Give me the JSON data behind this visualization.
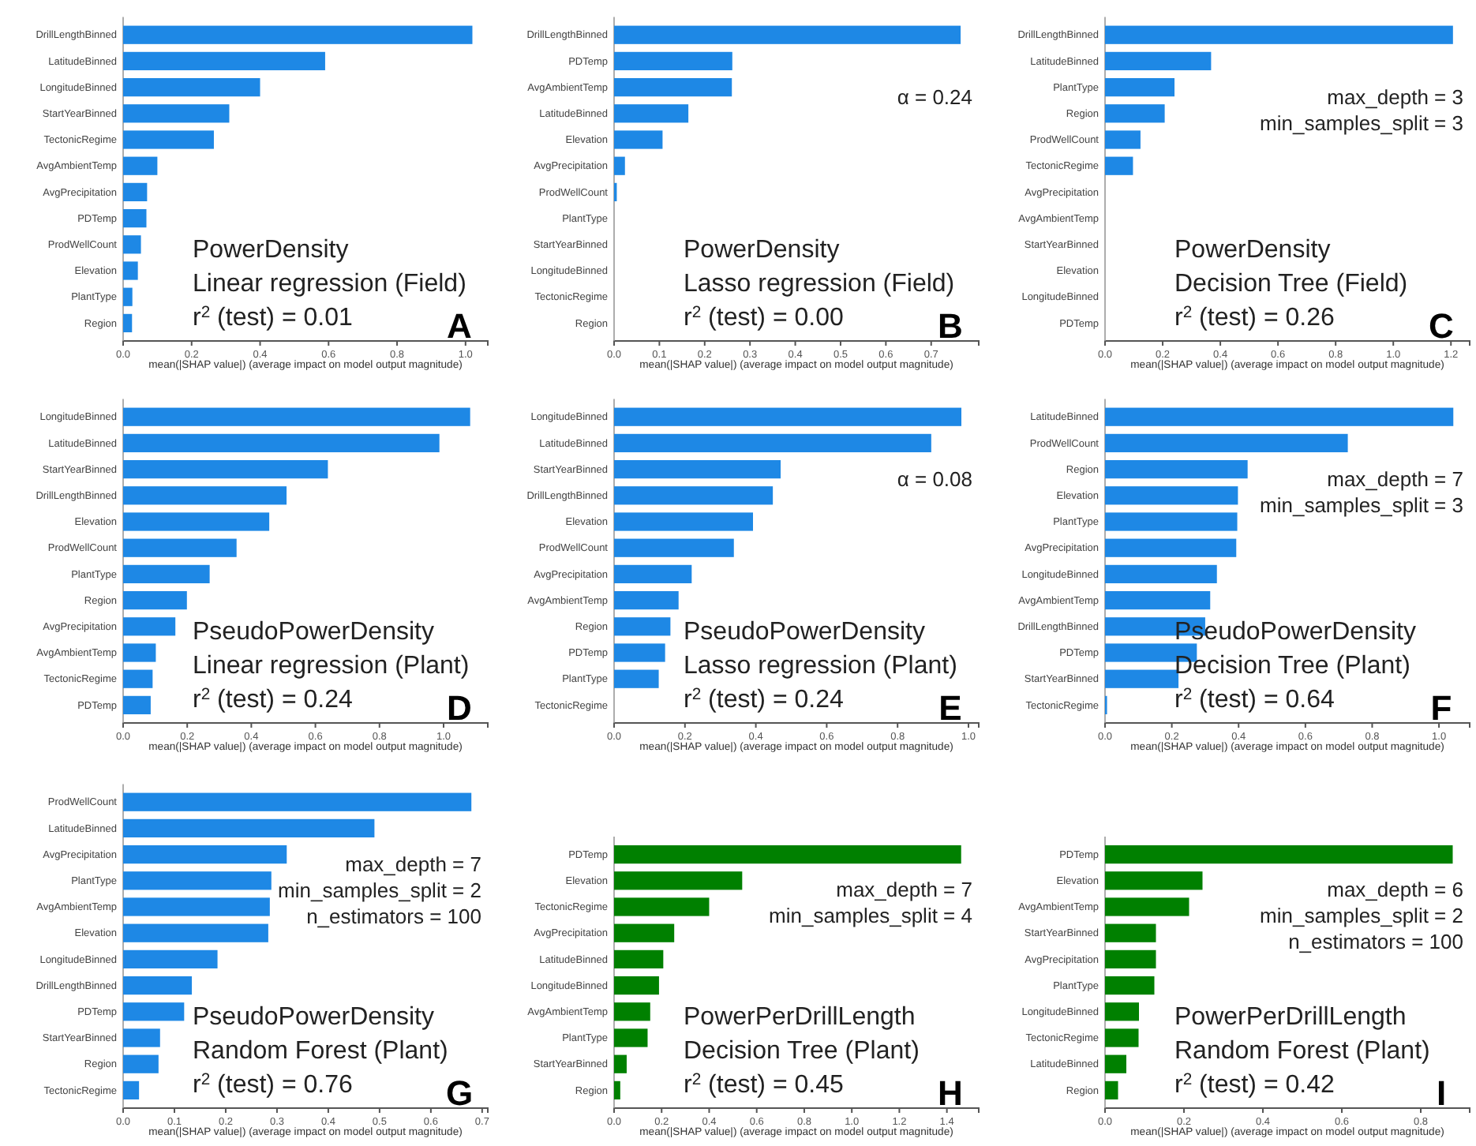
{
  "chart_data": [
    {
      "type": "bar",
      "orientation": "horizontal",
      "color": "#1e88e5",
      "categories": [
        "DrillLengthBinned",
        "LatitudeBinned",
        "LongitudeBinned",
        "StartYearBinned",
        "TectonicRegime",
        "AvgAmbientTemp",
        "AvgPrecipitation",
        "PDTemp",
        "ProdWellCount",
        "Elevation",
        "PlantType",
        "Region"
      ],
      "values": [
        1.02,
        0.59,
        0.4,
        0.31,
        0.265,
        0.1,
        0.07,
        0.068,
        0.052,
        0.043,
        0.027,
        0.026
      ],
      "xlim": [
        0,
        1.065
      ],
      "xticks": [
        {
          "value": 0,
          "label": "0.0"
        },
        {
          "value": 0.2,
          "label": "0.2"
        },
        {
          "value": 0.4,
          "label": "0.4"
        },
        {
          "value": 0.6,
          "label": "0.6"
        },
        {
          "value": 0.8,
          "label": "0.8"
        },
        {
          "value": 1,
          "label": "1.0"
        }
      ],
      "xlabel": "mean(|SHAP value|) (average impact on model output magnitude)",
      "annotations": [
        "PowerDensity",
        "Linear regression (Field)",
        "r$^{2}$ (test) = 0.01",
        "A"
      ]
    },
    {
      "type": "bar",
      "orientation": "horizontal",
      "color": "#1e88e5",
      "categories": [
        "DrillLengthBinned",
        "PDTemp",
        "AvgAmbientTemp",
        "LatitudeBinned",
        "Elevation",
        "AvgPrecipitation",
        "ProdWellCount",
        "PlantType",
        "StartYearBinned",
        "LongitudeBinned",
        "TectonicRegime",
        "Region"
      ],
      "values": [
        0.765,
        0.261,
        0.26,
        0.164,
        0.107,
        0.024,
        0.006,
        0,
        0,
        0,
        0,
        0
      ],
      "xlim": [
        0,
        0.805
      ],
      "xticks": [
        {
          "value": 0,
          "label": "0.0"
        },
        {
          "value": 0.1,
          "label": "0.1"
        },
        {
          "value": 0.2,
          "label": "0.2"
        },
        {
          "value": 0.3,
          "label": "0.3"
        },
        {
          "value": 0.4,
          "label": "0.4"
        },
        {
          "value": 0.5,
          "label": "0.5"
        },
        {
          "value": 0.6,
          "label": "0.6"
        },
        {
          "value": 0.7,
          "label": "0.7"
        }
      ],
      "xlabel": "mean(|SHAP value|) (average impact on model output magnitude)",
      "annotations": [
        "α = 0.24",
        "PowerDensity",
        "Lasso regression (Field)",
        "r$^{2}$ (test) = 0.00",
        "B"
      ]
    },
    {
      "type": "bar",
      "orientation": "horizontal",
      "color": "#1e88e5",
      "categories": [
        "DrillLengthBinned",
        "LatitudeBinned",
        "PlantType",
        "Region",
        "ProdWellCount",
        "TectonicRegime",
        "AvgPrecipitation",
        "AvgAmbientTemp",
        "StartYearBinned",
        "Elevation",
        "LongitudeBinned",
        "PDTemp"
      ],
      "values": [
        1.207,
        0.368,
        0.241,
        0.207,
        0.123,
        0.097,
        0,
        0,
        0,
        0,
        0,
        0
      ],
      "xlim": [
        0,
        1.265
      ],
      "xticks": [
        {
          "value": 0,
          "label": "0.0"
        },
        {
          "value": 0.2,
          "label": "0.2"
        },
        {
          "value": 0.4,
          "label": "0.4"
        },
        {
          "value": 0.6,
          "label": "0.6"
        },
        {
          "value": 0.8,
          "label": "0.8"
        },
        {
          "value": 1,
          "label": "1.0"
        },
        {
          "value": 1.2,
          "label": "1.2"
        }
      ],
      "xlabel": "mean(|SHAP value|) (average impact on model output magnitude)",
      "annotations": [
        "max_depth = 3",
        "min_samples_split = 3",
        "PowerDensity",
        "Decision Tree (Field)",
        "r$^{2}$ (test) = 0.26",
        "C"
      ]
    },
    {
      "type": "bar",
      "orientation": "horizontal",
      "color": "#1e88e5",
      "categories": [
        "LongitudeBinned",
        "LatitudeBinned",
        "StartYearBinned",
        "DrillLengthBinned",
        "Elevation",
        "ProdWellCount",
        "PlantType",
        "Region",
        "AvgPrecipitation",
        "AvgAmbientTemp",
        "TectonicRegime",
        "PDTemp"
      ],
      "values": [
        1.083,
        0.987,
        0.639,
        0.51,
        0.456,
        0.354,
        0.27,
        0.199,
        0.163,
        0.102,
        0.092,
        0.086
      ],
      "xlim": [
        0,
        1.138
      ],
      "xticks": [
        {
          "value": 0,
          "label": "0.0"
        },
        {
          "value": 0.2,
          "label": "0.2"
        },
        {
          "value": 0.4,
          "label": "0.4"
        },
        {
          "value": 0.6,
          "label": "0.6"
        },
        {
          "value": 0.8,
          "label": "0.8"
        },
        {
          "value": 1,
          "label": "1.0"
        }
      ],
      "xlabel": "mean(|SHAP value|) (average impact on model output magnitude)",
      "annotations": [
        "PseudoPowerDensity",
        "Linear regression (Plant)",
        "r$^{2}$ (test) = 0.24",
        "D"
      ]
    },
    {
      "type": "bar",
      "orientation": "horizontal",
      "color": "#1e88e5",
      "categories": [
        "LongitudeBinned",
        "LatitudeBinned",
        "StartYearBinned",
        "DrillLengthBinned",
        "Elevation",
        "ProdWellCount",
        "AvgPrecipitation",
        "AvgAmbientTemp",
        "Region",
        "PDTemp",
        "PlantType",
        "TectonicRegime"
      ],
      "values": [
        0.98,
        0.895,
        0.47,
        0.448,
        0.392,
        0.338,
        0.219,
        0.182,
        0.159,
        0.144,
        0.126,
        0
      ],
      "xlim": [
        0,
        1.029
      ],
      "xticks": [
        {
          "value": 0,
          "label": "0.0"
        },
        {
          "value": 0.2,
          "label": "0.2"
        },
        {
          "value": 0.4,
          "label": "0.4"
        },
        {
          "value": 0.6,
          "label": "0.6"
        },
        {
          "value": 0.8,
          "label": "0.8"
        },
        {
          "value": 1,
          "label": "1.0"
        }
      ],
      "xlabel": "mean(|SHAP value|) (average impact on model output magnitude)",
      "annotations": [
        "α = 0.08",
        "PseudoPowerDensity",
        "Lasso regression (Plant)",
        "r$^{2}$ (test) = 0.24",
        "E"
      ]
    },
    {
      "type": "bar",
      "orientation": "horizontal",
      "color": "#1e88e5",
      "categories": [
        "LatitudeBinned",
        "ProdWellCount",
        "Region",
        "Elevation",
        "PlantType",
        "AvgPrecipitation",
        "LongitudeBinned",
        "AvgAmbientTemp",
        "DrillLengthBinned",
        "PDTemp",
        "StartYearBinned",
        "TectonicRegime"
      ],
      "values": [
        1.043,
        0.727,
        0.427,
        0.398,
        0.396,
        0.393,
        0.335,
        0.315,
        0.3,
        0.275,
        0.22,
        0.006
      ],
      "xlim": [
        0,
        1.092
      ],
      "xticks": [
        {
          "value": 0,
          "label": "0.0"
        },
        {
          "value": 0.2,
          "label": "0.2"
        },
        {
          "value": 0.4,
          "label": "0.4"
        },
        {
          "value": 0.6,
          "label": "0.6"
        },
        {
          "value": 0.8,
          "label": "0.8"
        },
        {
          "value": 1,
          "label": "1.0"
        }
      ],
      "xlabel": "mean(|SHAP value|) (average impact on model output magnitude)",
      "annotations": [
        "max_depth = 7",
        "min_samples_split = 3",
        "PseudoPowerDensity",
        "Decision Tree (Plant)",
        "r$^{2}$ (test) = 0.64",
        "F"
      ]
    },
    {
      "type": "bar",
      "orientation": "horizontal",
      "color": "#1e88e5",
      "categories": [
        "ProdWellCount",
        "LatitudeBinned",
        "AvgPrecipitation",
        "PlantType",
        "AvgAmbientTemp",
        "Elevation",
        "LongitudeBinned",
        "DrillLengthBinned",
        "PDTemp",
        "StartYearBinned",
        "Region",
        "TectonicRegime"
      ],
      "values": [
        0.679,
        0.49,
        0.319,
        0.289,
        0.286,
        0.283,
        0.184,
        0.134,
        0.119,
        0.072,
        0.069,
        0.031
      ],
      "xlim": [
        0,
        0.711
      ],
      "xticks": [
        {
          "value": 0,
          "label": "0.0"
        },
        {
          "value": 0.1,
          "label": "0.1"
        },
        {
          "value": 0.2,
          "label": "0.2"
        },
        {
          "value": 0.3,
          "label": "0.3"
        },
        {
          "value": 0.4,
          "label": "0.4"
        },
        {
          "value": 0.5,
          "label": "0.5"
        },
        {
          "value": 0.6,
          "label": "0.6"
        },
        {
          "value": 0.7,
          "label": "0.7"
        }
      ],
      "xlabel": "mean(|SHAP value|) (average impact on model output magnitude)",
      "annotations": [
        "max_depth = 7",
        "min_samples_split = 2",
        "n_estimators = 100",
        "PseudoPowerDensity",
        "Random Forest (Plant)",
        "r$^{2}$ (test) = 0.76",
        "G"
      ]
    },
    {
      "type": "bar",
      "orientation": "horizontal",
      "color": "#008000",
      "categories": [
        "PDTemp",
        "Elevation",
        "TectonicRegime",
        "AvgPrecipitation",
        "LatitudeBinned",
        "LongitudeBinned",
        "AvgAmbientTemp",
        "PlantType",
        "StartYearBinned",
        "Region"
      ],
      "values": [
        1.46,
        0.539,
        0.4,
        0.253,
        0.207,
        0.189,
        0.152,
        0.141,
        0.053,
        0.026
      ],
      "xlim": [
        0,
        1.534
      ],
      "xticks": [
        {
          "value": 0,
          "label": "0.0"
        },
        {
          "value": 0.2,
          "label": "0.2"
        },
        {
          "value": 0.4,
          "label": "0.4"
        },
        {
          "value": 0.6,
          "label": "0.6"
        },
        {
          "value": 0.8,
          "label": "0.8"
        },
        {
          "value": 1,
          "label": "1.0"
        },
        {
          "value": 1.2,
          "label": "1.2"
        },
        {
          "value": 1.4,
          "label": "1.4"
        }
      ],
      "xlabel": "mean(|SHAP value|) (average impact on model output magnitude)",
      "annotations": [
        "max_depth = 7",
        "min_samples_split = 4",
        "PowerPerDrillLength",
        "Decision Tree (Plant)",
        "r$^{2}$ (test) = 0.45",
        "H"
      ]
    },
    {
      "type": "bar",
      "orientation": "horizontal",
      "color": "#008000",
      "categories": [
        "PDTemp",
        "Elevation",
        "AvgAmbientTemp",
        "StartYearBinned",
        "AvgPrecipitation",
        "PlantType",
        "LongitudeBinned",
        "TectonicRegime",
        "LatitudeBinned",
        "Region"
      ],
      "values": [
        0.881,
        0.247,
        0.213,
        0.129,
        0.129,
        0.125,
        0.086,
        0.085,
        0.054,
        0.033
      ],
      "xlim": [
        0,
        0.924
      ],
      "xticks": [
        {
          "value": 0,
          "label": "0.0"
        },
        {
          "value": 0.2,
          "label": "0.2"
        },
        {
          "value": 0.4,
          "label": "0.4"
        },
        {
          "value": 0.6,
          "label": "0.6"
        },
        {
          "value": 0.8,
          "label": "0.8"
        }
      ],
      "xlabel": "mean(|SHAP value|) (average impact on model output magnitude)",
      "annotations": [
        "max_depth = 6",
        "min_samples_split = 2",
        "n_estimators = 100",
        "PowerPerDrillLength",
        "Random Forest (Plant)",
        "r$^{2}$ (test) = 0.42",
        "I"
      ]
    }
  ]
}
